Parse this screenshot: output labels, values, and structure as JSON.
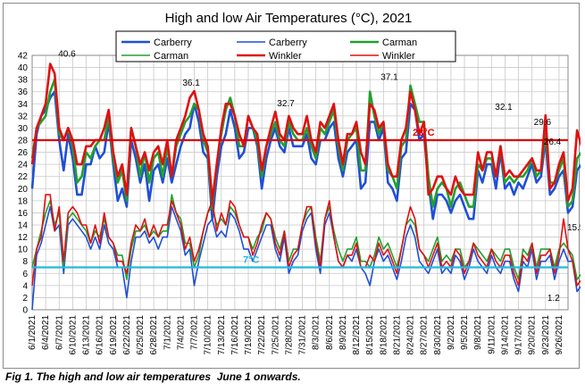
{
  "chart_data": {
    "type": "line",
    "title": "High and low Air Temperatures (°C), 2021",
    "xlabel": "",
    "ylabel": "",
    "ylim": [
      0,
      42
    ],
    "yticks": [
      0,
      2,
      4,
      6,
      8,
      10,
      12,
      14,
      16,
      18,
      20,
      22,
      24,
      26,
      28,
      30,
      32,
      34,
      36,
      38,
      40,
      42
    ],
    "x_start": "2021-06-01",
    "x_end": "2021-09-28",
    "xtick_labels": [
      "6/1/2021",
      "6/4/2021",
      "6/7/2021",
      "6/10/2021",
      "6/13/2021",
      "6/16/2021",
      "6/19/2021",
      "6/22/2021",
      "6/25/2021",
      "6/28/2021",
      "7/1/2021",
      "7/4/2021",
      "7/7/2021",
      "7/10/2021",
      "7/13/2021",
      "7/16/2021",
      "7/19/2021",
      "7/22/2021",
      "7/25/2021",
      "7/28/2021",
      "7/31/2021",
      "8/3/2021",
      "8/6/2021",
      "8/9/2021",
      "8/12/2021",
      "8/15/2021",
      "8/18/2021",
      "8/21/2021",
      "8/24/2021",
      "8/27/2021",
      "8/30/2021",
      "9/2/2021",
      "9/5/2021",
      "9/8/2021",
      "9/11/2021",
      "9/14/2021",
      "9/17/2021",
      "9/20/2021",
      "9/23/2021",
      "9/26/2021"
    ],
    "grid": true,
    "legend_position": "top",
    "reference_lines": [
      {
        "label": "28°C",
        "value": 28,
        "color": "#e00000"
      },
      {
        "label": "7°C",
        "value": 7,
        "color": "#22b8e0"
      }
    ],
    "annotations": [
      {
        "text": "40.6",
        "x": "2021-06-06",
        "y": 40.6
      },
      {
        "text": "36.1",
        "x": "2021-07-04",
        "y": 36.1
      },
      {
        "text": "32.7",
        "x": "2021-07-25",
        "y": 32.7
      },
      {
        "text": "37.1",
        "x": "2021-08-17",
        "y": 37.1
      },
      {
        "text": "32.1",
        "x": "2021-09-11",
        "y": 32.1
      },
      {
        "text": "29.6",
        "x": "2021-09-20",
        "y": 29.6
      },
      {
        "text": "26.4",
        "x": "2021-09-23",
        "y": 26.4
      },
      {
        "text": "15.5",
        "x": "2021-09-27",
        "y": 15.5
      },
      {
        "text": "1.2",
        "x": "2021-09-25",
        "y": 1.2
      }
    ],
    "series": [
      {
        "name": "Carberry",
        "kind": "high",
        "color": "#1f4fd6",
        "width": 2.6,
        "values": [
          20,
          29,
          32,
          33,
          35,
          36,
          28,
          23,
          29,
          25,
          19,
          19,
          24,
          24,
          27,
          25,
          26,
          31,
          24,
          18,
          20,
          17,
          28,
          25,
          21,
          24,
          18,
          23,
          24,
          21,
          25,
          21,
          24,
          27,
          29,
          30,
          34,
          31,
          26,
          25,
          15,
          22,
          27,
          29,
          33,
          30,
          25,
          26,
          30,
          30,
          27,
          20,
          25,
          28,
          30,
          27,
          26,
          30,
          27,
          27,
          27,
          29,
          25,
          24,
          28,
          28,
          30,
          31,
          25,
          22,
          26,
          27,
          28,
          20,
          21,
          31,
          31,
          28,
          30,
          21,
          20,
          18,
          25,
          26,
          34,
          33,
          28,
          29,
          21,
          15,
          19,
          19,
          18,
          16,
          18,
          19,
          17,
          15,
          15,
          23,
          21,
          24,
          24,
          20,
          26,
          20,
          21,
          19,
          21,
          20,
          22,
          24,
          21,
          22,
          28,
          19,
          20,
          22,
          23,
          16,
          17,
          23,
          24,
          20,
          18,
          22,
          25,
          20
        ]
      },
      {
        "name": "Carberry",
        "kind": "low",
        "color": "#1f4fd6",
        "width": 1.6,
        "values": [
          0,
          9,
          11,
          14,
          17,
          13,
          14,
          6,
          14,
          15,
          14,
          13,
          12,
          10,
          12,
          10,
          14,
          11,
          10,
          7,
          7,
          2,
          8,
          12,
          12,
          13,
          11,
          12,
          10,
          12,
          12,
          17,
          15,
          13,
          9,
          10,
          4,
          8,
          11,
          14,
          15,
          12,
          13,
          12,
          16,
          15,
          13,
          10,
          10,
          8,
          10,
          12,
          14,
          14,
          10,
          8,
          12,
          6,
          8,
          9,
          13,
          15,
          16,
          10,
          6,
          14,
          16,
          12,
          8,
          7,
          9,
          8,
          10,
          7,
          6,
          4,
          8,
          10,
          8,
          9,
          7,
          5,
          8,
          12,
          14,
          12,
          8,
          7,
          6,
          8,
          10,
          6,
          7,
          6,
          9,
          8,
          5,
          7,
          10,
          8,
          7,
          6,
          9,
          7,
          6,
          8,
          8,
          5,
          3,
          8,
          7,
          10,
          5,
          8,
          8,
          9,
          5,
          8,
          10,
          8,
          8,
          3,
          4,
          5,
          1,
          2,
          7,
          8
        ]
      },
      {
        "name": "Carman",
        "kind": "high",
        "color": "#22a02e",
        "width": 2.6,
        "values": [
          25,
          30,
          31,
          32,
          36,
          38,
          29,
          28,
          30,
          27,
          21,
          22,
          26,
          25,
          27,
          28,
          28,
          32,
          25,
          21,
          23,
          18,
          30,
          27,
          22,
          26,
          21,
          25,
          26,
          22,
          27,
          22,
          27,
          29,
          31,
          32,
          34,
          33,
          28,
          26,
          17,
          24,
          29,
          33,
          35,
          32,
          27,
          27,
          32,
          30,
          28,
          22,
          27,
          29,
          31,
          28,
          27,
          31,
          29,
          28,
          28,
          30,
          27,
          25,
          30,
          29,
          31,
          33,
          27,
          23,
          28,
          29,
          30,
          23,
          23,
          36,
          32,
          29,
          31,
          23,
          22,
          20,
          27,
          28,
          37,
          34,
          31,
          31,
          22,
          17,
          20,
          21,
          20,
          17,
          20,
          21,
          19,
          17,
          17,
          24,
          23,
          25,
          25,
          22,
          27,
          21,
          22,
          21,
          22,
          22,
          23,
          25,
          22,
          23,
          29,
          21,
          21,
          23,
          25,
          17,
          18,
          25,
          26,
          22,
          20,
          24,
          28,
          22
        ]
      },
      {
        "name": "Carman",
        "kind": "low",
        "color": "#22a02e",
        "width": 1.6,
        "values": [
          7,
          10,
          13,
          16,
          18,
          14,
          16,
          7,
          15,
          16,
          15,
          14,
          13,
          11,
          13,
          12,
          15,
          12,
          11,
          9,
          9,
          5,
          10,
          13,
          13,
          14,
          12,
          13,
          12,
          13,
          13,
          19,
          16,
          15,
          11,
          11,
          7,
          9,
          13,
          16,
          17,
          14,
          15,
          14,
          17,
          16,
          14,
          12,
          12,
          10,
          12,
          13,
          16,
          15,
          12,
          10,
          13,
          8,
          10,
          10,
          14,
          16,
          17,
          12,
          8,
          15,
          17,
          13,
          10,
          8,
          10,
          10,
          12,
          8,
          8,
          7,
          9,
          12,
          10,
          11,
          9,
          7,
          10,
          14,
          15,
          14,
          10,
          9,
          8,
          10,
          12,
          8,
          9,
          8,
          10,
          10,
          7,
          8,
          11,
          10,
          9,
          8,
          10,
          9,
          8,
          10,
          10,
          7,
          5,
          10,
          9,
          11,
          7,
          10,
          10,
          10,
          7,
          10,
          11,
          10,
          9,
          5,
          6,
          6,
          3,
          3,
          6,
          7
        ]
      },
      {
        "name": "Winkler",
        "kind": "high",
        "color": "#e01010",
        "width": 2.6,
        "values": [
          24,
          30,
          32,
          34,
          40.6,
          39,
          30,
          28,
          30,
          28,
          24,
          24,
          27,
          27,
          28,
          28,
          30,
          33,
          26,
          22,
          24,
          19,
          30,
          27,
          24,
          26,
          23,
          26,
          27,
          24,
          28,
          22,
          28,
          30,
          32,
          35,
          36.1,
          33,
          29,
          27,
          18,
          24,
          30,
          34,
          34,
          32,
          29,
          27,
          32,
          30,
          29,
          23,
          27,
          30,
          32.7,
          29,
          28,
          32,
          30,
          29,
          29,
          32,
          28,
          26,
          31,
          30,
          32,
          34,
          28,
          24,
          29,
          29,
          31,
          26,
          24,
          34,
          33,
          30,
          31,
          24,
          22,
          22,
          28,
          30,
          36,
          33,
          29,
          31,
          19,
          20,
          22,
          22,
          20,
          19,
          22,
          20,
          19,
          19,
          19,
          26,
          23,
          26,
          26,
          22,
          27,
          22,
          23,
          22,
          22,
          23,
          24,
          25,
          23,
          23,
          32.1,
          20,
          21,
          24,
          26,
          18,
          20,
          29.6,
          27,
          21,
          20,
          26.4,
          25,
          24
        ]
      },
      {
        "name": "Winkler",
        "kind": "low",
        "color": "#e01010",
        "width": 1.6,
        "values": [
          4,
          10,
          12,
          19,
          19,
          13,
          17,
          8,
          16,
          17,
          16,
          14,
          14,
          11,
          14,
          11,
          16,
          12,
          11,
          8,
          8,
          6,
          11,
          14,
          13,
          15,
          12,
          14,
          12,
          14,
          14,
          18,
          16,
          14,
          10,
          12,
          8,
          10,
          13,
          16,
          18,
          13,
          16,
          14,
          18,
          17,
          14,
          12,
          12,
          9,
          11,
          14,
          16,
          15,
          11,
          9,
          13,
          7,
          9,
          10,
          14,
          17,
          17,
          11,
          7,
          15,
          18,
          12,
          8,
          7,
          9,
          9,
          11,
          7,
          7,
          9,
          8,
          11,
          9,
          10,
          8,
          6,
          10,
          14,
          17,
          15,
          10,
          9,
          7,
          9,
          11,
          7,
          8,
          7,
          10,
          9,
          6,
          8,
          11,
          9,
          8,
          7,
          10,
          8,
          7,
          9,
          9,
          6,
          4,
          9,
          8,
          11,
          6,
          9,
          9,
          10,
          6,
          9,
          15,
          10,
          8,
          4,
          5,
          6,
          12,
          4,
          4,
          5
        ]
      }
    ]
  },
  "caption": "Fig 1. The high and low air temperatures  June 1 onwards."
}
